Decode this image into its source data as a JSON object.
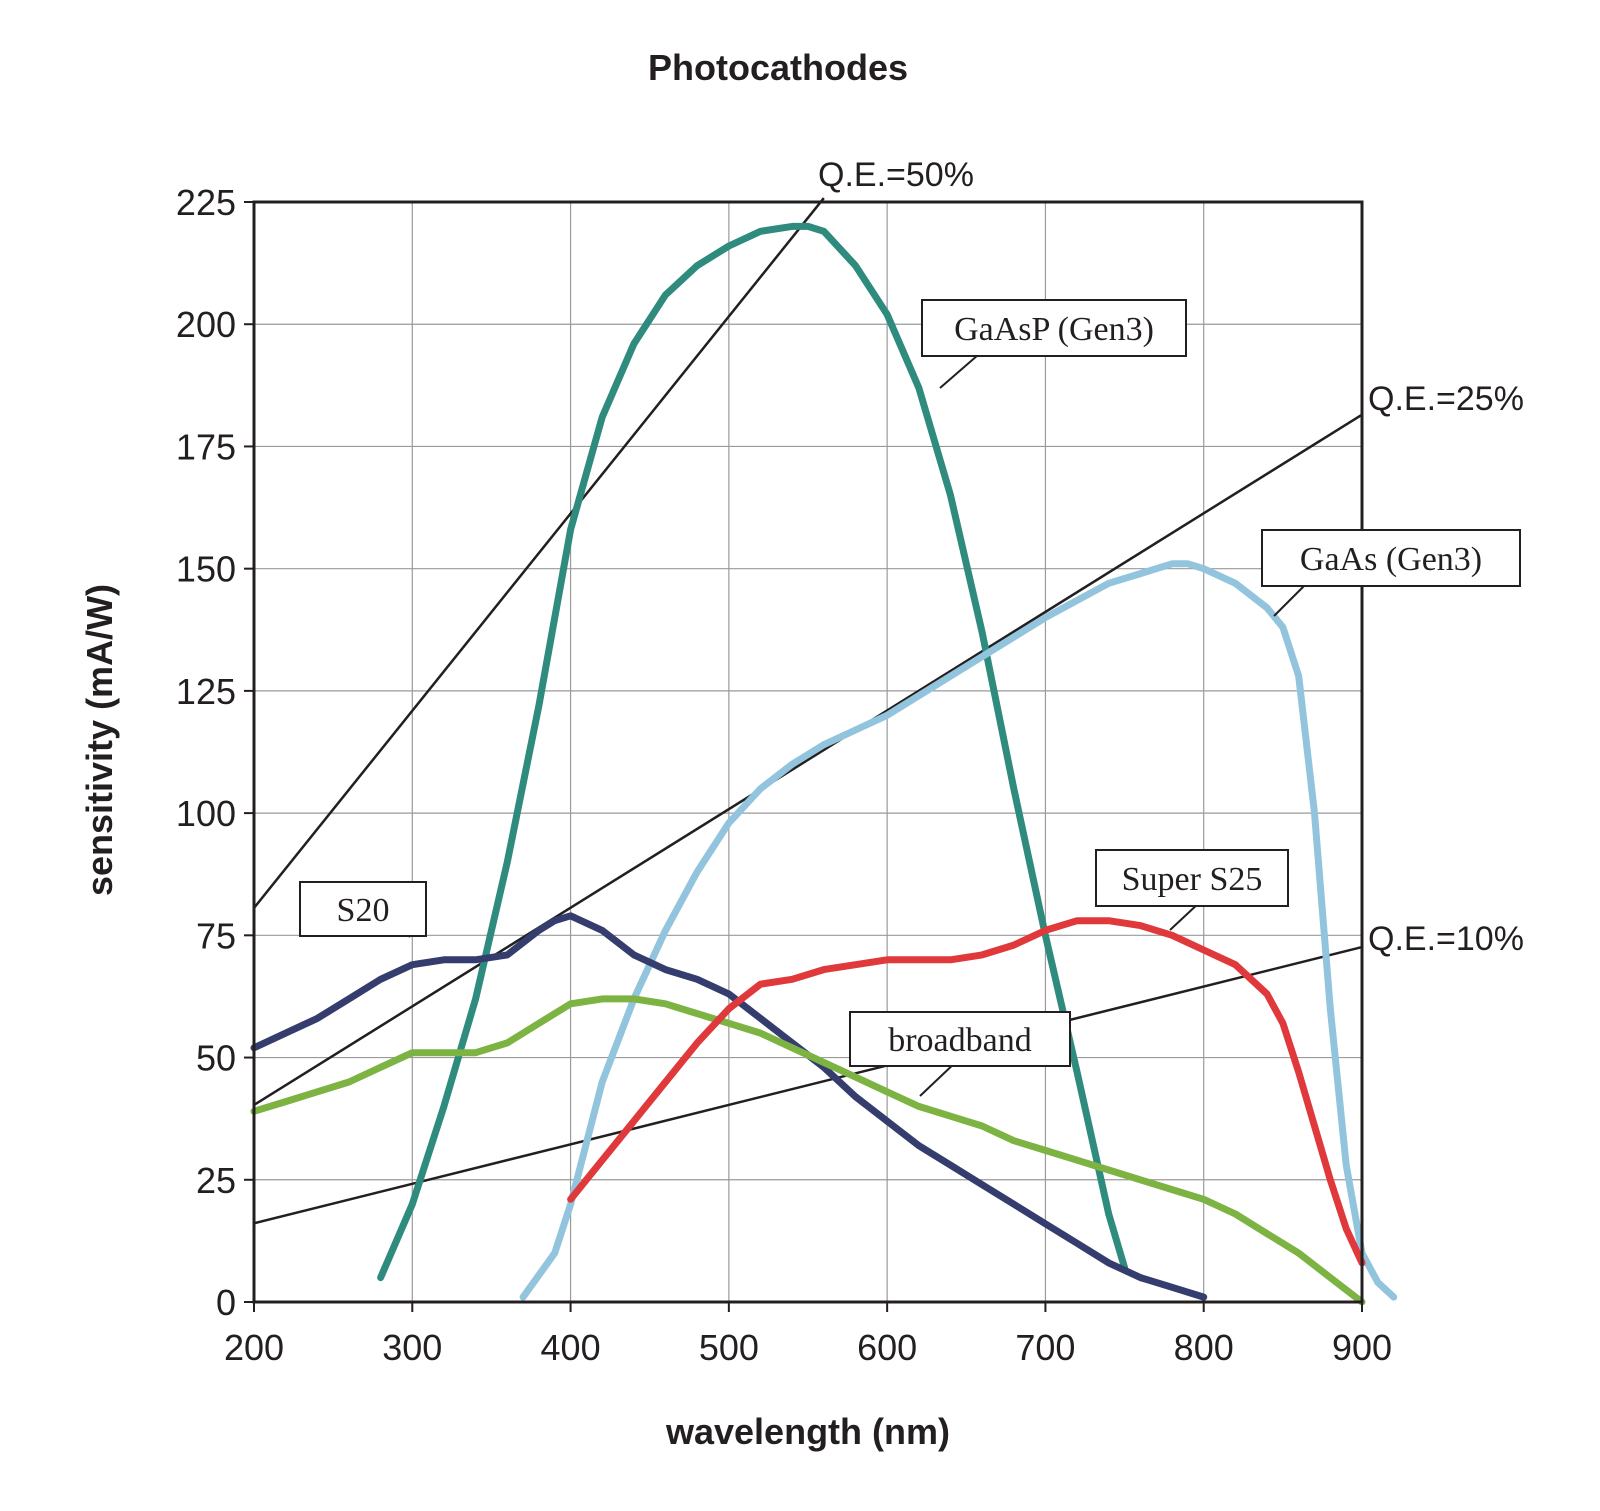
{
  "chart_data": {
    "type": "line",
    "title": "Photocathodes",
    "xlabel": "wavelength (nm)",
    "ylabel": "sensitivity (mA/W)",
    "xlim": [
      200,
      900
    ],
    "ylim": [
      0,
      225
    ],
    "xticks": [
      200,
      300,
      400,
      500,
      600,
      700,
      800,
      900
    ],
    "yticks": [
      0,
      25,
      50,
      75,
      100,
      125,
      150,
      175,
      200,
      225
    ],
    "grid": true,
    "series": [
      {
        "name": "GaAsP (Gen3)",
        "color": "#2e8b7d",
        "x": [
          280,
          300,
          320,
          340,
          360,
          380,
          400,
          420,
          440,
          460,
          480,
          500,
          520,
          540,
          550,
          560,
          580,
          600,
          620,
          640,
          660,
          680,
          700,
          720,
          740,
          750
        ],
        "y": [
          5,
          20,
          40,
          62,
          90,
          122,
          158,
          181,
          196,
          206,
          212,
          216,
          219,
          220,
          220,
          219,
          212,
          202,
          187,
          165,
          137,
          105,
          75,
          47,
          18,
          7
        ]
      },
      {
        "name": "GaAs (Gen3)",
        "color": "#92c5dd",
        "x": [
          370,
          390,
          400,
          420,
          440,
          460,
          480,
          500,
          520,
          540,
          560,
          580,
          600,
          650,
          700,
          740,
          760,
          780,
          790,
          800,
          820,
          840,
          850,
          860,
          870,
          880,
          890,
          900,
          910,
          920
        ],
        "y": [
          1,
          10,
          20,
          45,
          62,
          76,
          88,
          98,
          105,
          110,
          114,
          117,
          120,
          130,
          140,
          147,
          149,
          151,
          151,
          150,
          147,
          142,
          138,
          128,
          100,
          60,
          28,
          10,
          4,
          1
        ]
      },
      {
        "name": "S20",
        "color": "#343d6e",
        "x": [
          200,
          220,
          240,
          260,
          280,
          300,
          320,
          340,
          360,
          380,
          390,
          400,
          420,
          440,
          460,
          480,
          500,
          520,
          540,
          560,
          580,
          600,
          620,
          640,
          660,
          680,
          700,
          720,
          740,
          760,
          780,
          800
        ],
        "y": [
          52,
          55,
          58,
          62,
          66,
          69,
          70,
          70,
          71,
          76,
          78,
          79,
          76,
          71,
          68,
          66,
          63,
          58,
          53,
          48,
          42,
          37,
          32,
          28,
          24,
          20,
          16,
          12,
          8,
          5,
          3,
          1
        ]
      },
      {
        "name": "broadband",
        "color": "#7cb342",
        "x": [
          200,
          220,
          240,
          260,
          280,
          300,
          320,
          340,
          360,
          380,
          400,
          420,
          440,
          460,
          480,
          500,
          520,
          540,
          560,
          580,
          600,
          620,
          640,
          660,
          680,
          700,
          720,
          740,
          760,
          780,
          800,
          820,
          840,
          860,
          880,
          900
        ],
        "y": [
          39,
          41,
          43,
          45,
          48,
          51,
          51,
          51,
          53,
          57,
          61,
          62,
          62,
          61,
          59,
          57,
          55,
          52,
          49,
          46,
          43,
          40,
          38,
          36,
          33,
          31,
          29,
          27,
          25,
          23,
          21,
          18,
          14,
          10,
          5,
          0
        ]
      },
      {
        "name": "Super S25",
        "color": "#e0393b",
        "x": [
          400,
          420,
          440,
          460,
          480,
          500,
          520,
          540,
          560,
          580,
          600,
          620,
          640,
          660,
          680,
          700,
          720,
          740,
          760,
          780,
          800,
          820,
          840,
          850,
          860,
          870,
          880,
          890,
          900
        ],
        "y": [
          21,
          29,
          37,
          45,
          53,
          60,
          65,
          66,
          68,
          69,
          70,
          70,
          70,
          71,
          73,
          76,
          78,
          78,
          77,
          75,
          72,
          69,
          63,
          57,
          47,
          36,
          25,
          15,
          8
        ]
      }
    ],
    "qe_lines": [
      {
        "name": "Q.E.=50%",
        "label": "Q.E.=50%",
        "x": [
          200,
          560
        ],
        "y": [
          80.6,
          225.8
        ]
      },
      {
        "name": "Q.E.=25%",
        "label": "Q.E.=25%",
        "x": [
          200,
          900
        ],
        "y": [
          40.3,
          181.5
        ]
      },
      {
        "name": "Q.E.=10%",
        "label": "Q.E.=10%",
        "x": [
          200,
          900
        ],
        "y": [
          16.1,
          72.6
        ]
      }
    ],
    "annotations": [
      {
        "name": "s20-label",
        "text": "S20",
        "target": "S20"
      },
      {
        "name": "gaasp-label",
        "text": "GaAsP (Gen3)",
        "target": "GaAsP (Gen3)"
      },
      {
        "name": "gaas-label",
        "text": "GaAs (Gen3)",
        "target": "GaAs (Gen3)"
      },
      {
        "name": "super-s25-label",
        "text": "Super S25",
        "target": "Super S25"
      },
      {
        "name": "broadband-label",
        "text": "broadband",
        "target": "broadband"
      }
    ]
  }
}
